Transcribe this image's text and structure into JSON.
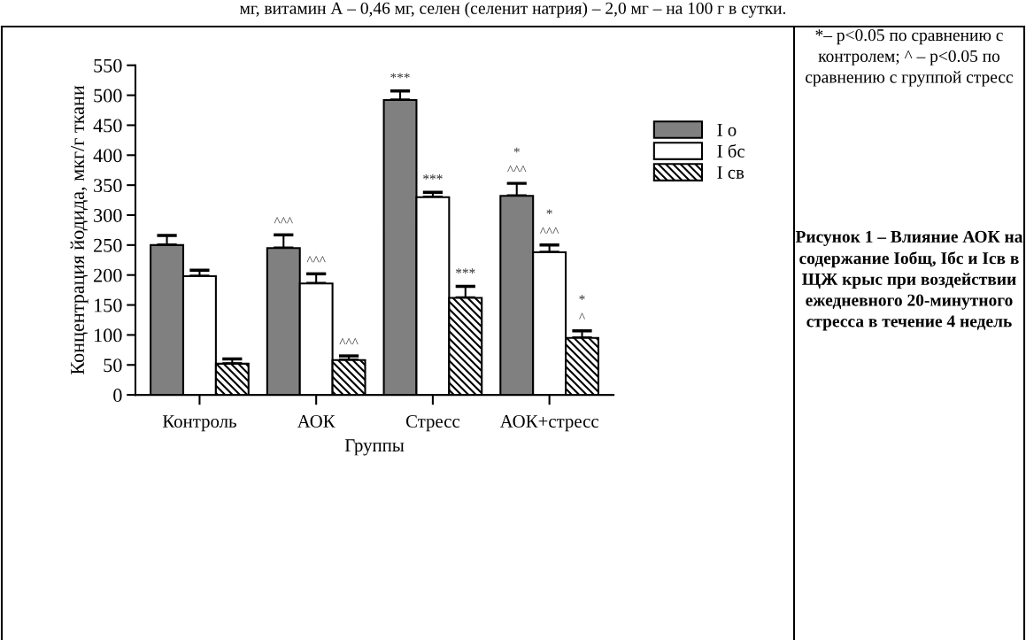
{
  "chart_data": {
    "type": "bar",
    "title": "Рисунок 1 – Влияние АОК на содержание Iобщ, Iбс и Iсв в ЩЖ крыс при воздействии ежедневного 20-минутного стресса в течение 4 недель",
    "xlabel": "Группы",
    "ylabel": "Концентрация йодида, мкг/г ткани",
    "categories": [
      "Контроль",
      "АОК",
      "Стресс",
      "АОК+стресс"
    ],
    "series": [
      {
        "name": "I о",
        "color": "#808080",
        "values": [
          250,
          245,
          492,
          332
        ],
        "errors": [
          [
            250,
            266
          ],
          [
            245,
            267
          ],
          [
            492,
            507
          ],
          [
            332,
            353
          ]
        ],
        "value_labels": [
          null,
          "^^^",
          "***",
          "*\n^^^"
        ]
      },
      {
        "name": "I бс",
        "color": "#ffffff",
        "values": [
          198,
          186,
          330,
          238
        ],
        "errors": [
          [
            198,
            208
          ],
          [
            186,
            202
          ],
          [
            330,
            338
          ],
          [
            238,
            250
          ]
        ],
        "value_labels": [
          null,
          "^^^",
          "***",
          "*\n^^^"
        ]
      },
      {
        "name": "I св",
        "color": "#000000",
        "values": [
          52,
          58,
          162,
          95
        ],
        "errors": [
          [
            52,
            60
          ],
          [
            58,
            65
          ],
          [
            162,
            181
          ],
          [
            95,
            107
          ]
        ],
        "value_labels": [
          null,
          "^^^",
          "***",
          "*\n^"
        ]
      }
    ],
    "ylim": [
      0,
      550
    ],
    "yticks": [
      0,
      50,
      100,
      150,
      200,
      250,
      300,
      350,
      400,
      450,
      500,
      550
    ],
    "grid": false,
    "legend": "right",
    "annotations": [
      "мг, витамин А – 0,46 мг, селен (селенит натрия) – 2,0 мг – на 100 г в сутки.",
      "*– p<0.05 по сравнению с контролем; ^ – p<0.05 по сравнению с группой стресс"
    ]
  }
}
